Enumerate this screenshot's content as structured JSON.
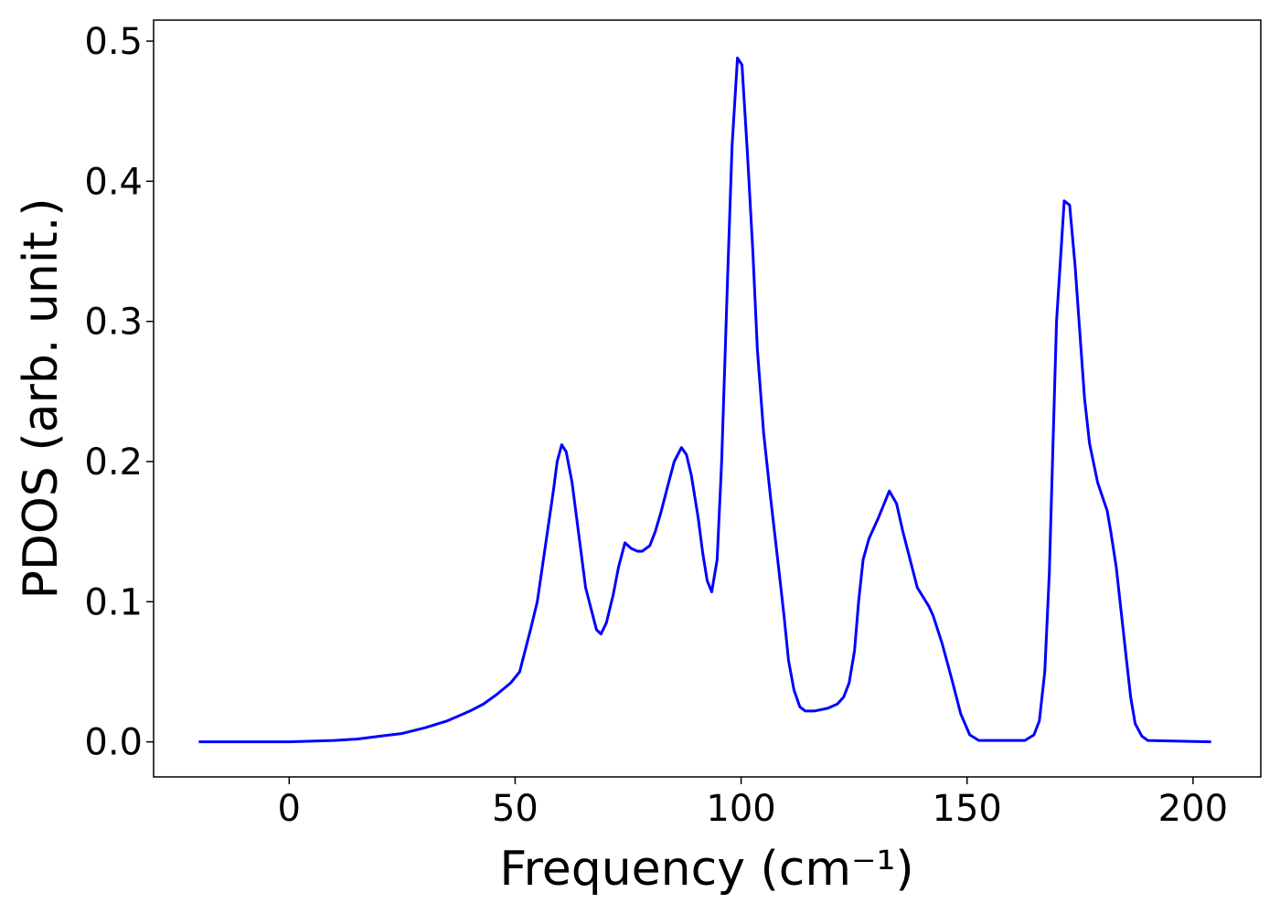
{
  "chart_data": {
    "type": "line",
    "xlabel": "Frequency (cm⁻¹)",
    "ylabel": "PDOS (arb. unit.)",
    "color": "#0000ff",
    "x": [
      -20,
      0,
      5,
      10,
      15,
      20,
      25,
      30,
      35,
      40,
      43,
      46,
      49,
      51,
      53.4,
      54.9,
      56.7,
      58.5,
      59.3,
      60.3,
      61.3,
      62.6,
      64,
      65.6,
      67.2,
      68,
      69,
      70.2,
      71.7,
      72.9,
      74.3,
      75.7,
      77.1,
      78.1,
      79.8,
      81,
      82.2,
      83.8,
      85.2,
      86.8,
      87.9,
      89,
      90.5,
      91.5,
      92.5,
      93.5,
      94.7,
      95.7,
      97,
      98,
      99.2,
      100.2,
      101.4,
      102.6,
      103.6,
      105,
      106.5,
      108.1,
      109.5,
      110.5,
      111.7,
      113,
      114.2,
      116.2,
      119.2,
      121.3,
      122.7,
      123.9,
      125.1,
      126,
      127,
      128.3,
      130.4,
      132.8,
      134.4,
      135.8,
      137.4,
      139,
      141.5,
      142.5,
      144.5,
      146.6,
      148.6,
      150.6,
      152.6,
      162.8,
      164.8,
      166,
      167.2,
      168.2,
      169.8,
      171.5,
      172.7,
      173.9,
      175,
      176,
      177.1,
      178.9,
      181,
      181.8,
      183,
      184.2,
      185.4,
      186.2,
      187.2,
      188.7,
      190,
      204
    ],
    "values": [
      0,
      0,
      0.0005,
      0.001,
      0.002,
      0.004,
      0.006,
      0.01,
      0.015,
      0.022,
      0.027,
      0.034,
      0.042,
      0.05,
      0.08,
      0.1,
      0.14,
      0.18,
      0.2,
      0.212,
      0.207,
      0.185,
      0.15,
      0.11,
      0.09,
      0.08,
      0.077,
      0.085,
      0.105,
      0.125,
      0.142,
      0.138,
      0.136,
      0.136,
      0.14,
      0.15,
      0.163,
      0.183,
      0.2,
      0.21,
      0.205,
      0.19,
      0.16,
      0.135,
      0.115,
      0.107,
      0.13,
      0.2,
      0.33,
      0.425,
      0.488,
      0.483,
      0.42,
      0.35,
      0.28,
      0.22,
      0.175,
      0.13,
      0.09,
      0.058,
      0.037,
      0.025,
      0.022,
      0.022,
      0.024,
      0.027,
      0.032,
      0.042,
      0.065,
      0.1,
      0.13,
      0.145,
      0.16,
      0.179,
      0.17,
      0.15,
      0.13,
      0.11,
      0.097,
      0.09,
      0.07,
      0.045,
      0.02,
      0.005,
      0.001,
      0.001,
      0.005,
      0.015,
      0.05,
      0.12,
      0.3,
      0.386,
      0.383,
      0.34,
      0.29,
      0.245,
      0.213,
      0.185,
      0.165,
      0.15,
      0.125,
      0.09,
      0.055,
      0.032,
      0.013,
      0.004,
      0.001,
      0
    ],
    "xlim": [
      -30,
      215
    ],
    "ylim": [
      -0.025,
      0.515
    ],
    "xticks": [
      0,
      50,
      100,
      150,
      200
    ],
    "yticks": [
      {
        "value": 0,
        "label": "0.0"
      },
      0.1,
      0.2,
      0.3,
      0.4,
      0.5
    ]
  }
}
